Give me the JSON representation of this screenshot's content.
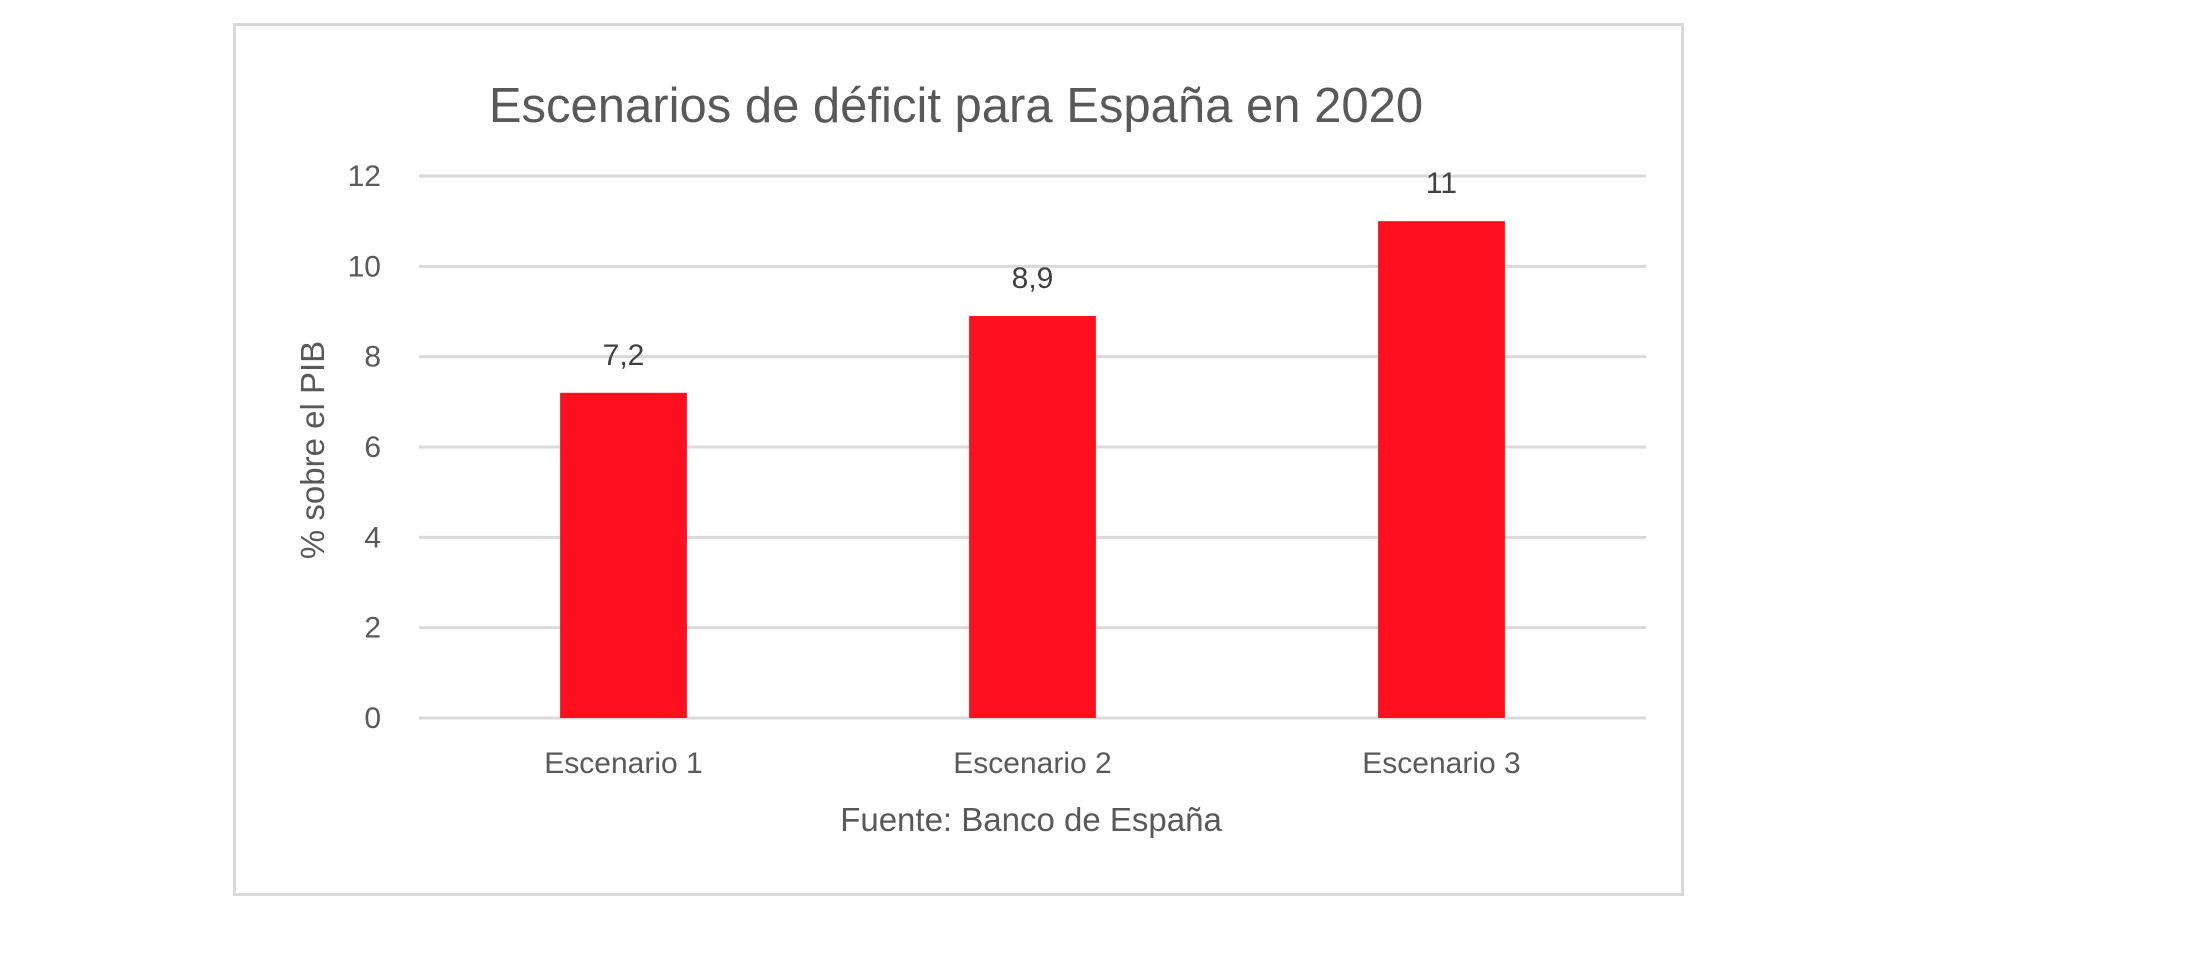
{
  "chart_data": {
    "type": "bar",
    "title": "Escenarios de déficit para España en 2020",
    "xlabel": "Fuente: Banco de España",
    "ylabel": "% sobre el PIB",
    "categories": [
      "Escenario 1",
      "Escenario 2",
      "Escenario 3"
    ],
    "values": [
      7.2,
      8.9,
      11
    ],
    "data_labels": [
      "7,2",
      "8,9",
      "11"
    ],
    "ylim": [
      0,
      12
    ],
    "yticks": [
      0,
      2,
      4,
      6,
      8,
      10,
      12
    ],
    "ytick_labels": [
      "0",
      "2",
      "4",
      "6",
      "8",
      "10",
      "12"
    ],
    "grid": true,
    "legend": "none",
    "bar_color": "#ff101f",
    "grid_color": "#d9d9d9",
    "text_color": "#595959"
  }
}
